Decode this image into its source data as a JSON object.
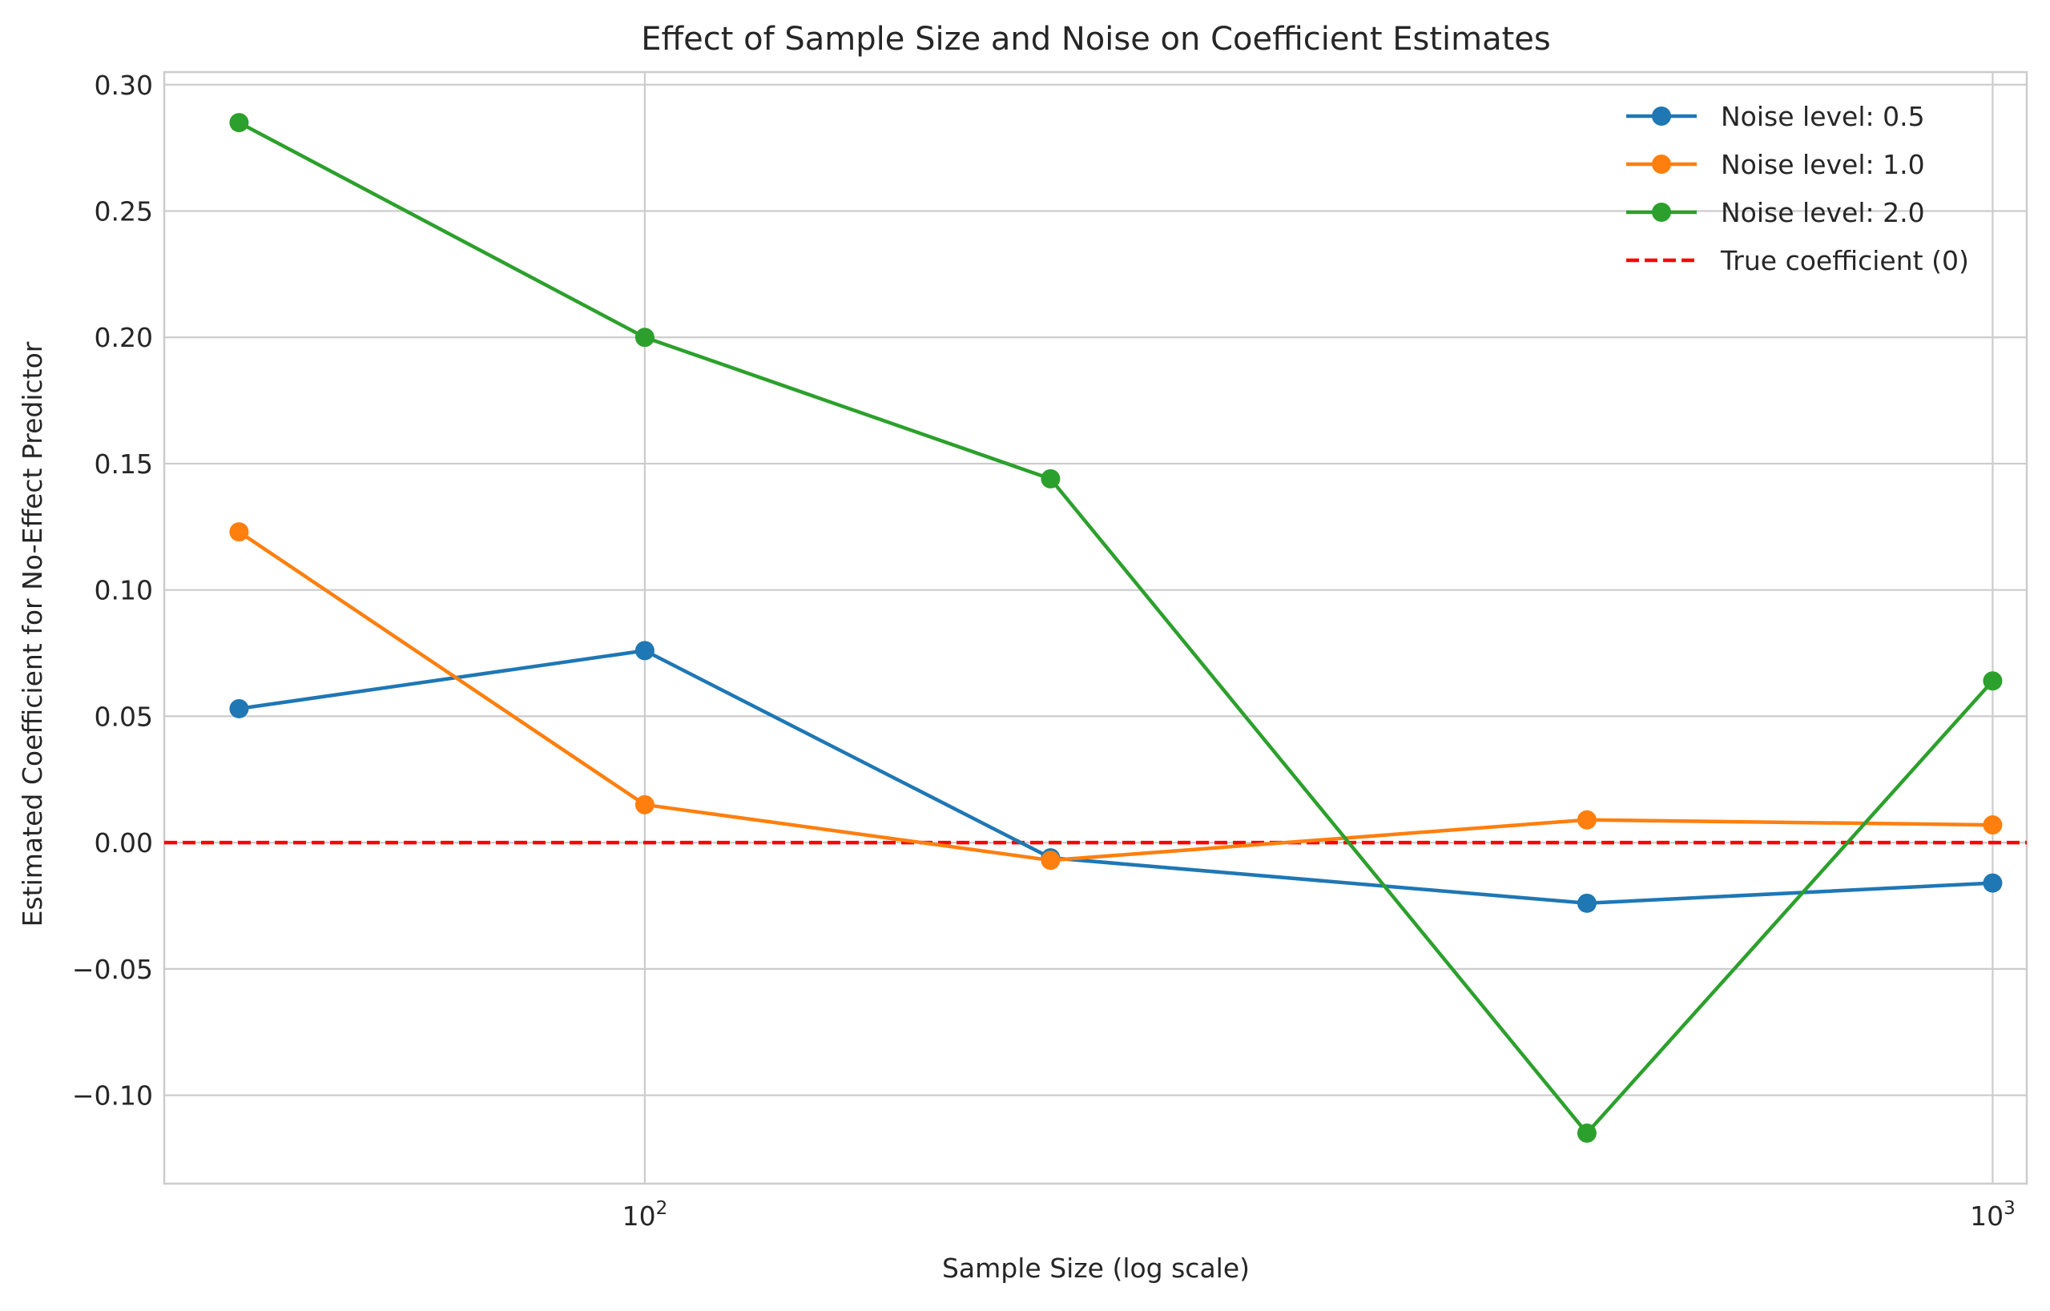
{
  "chart_data": {
    "type": "line",
    "title": "Effect of Sample Size and Noise on Coefficient Estimates",
    "xlabel": "Sample Size (log scale)",
    "ylabel": "Estimated Coefficient for No-Effect Predictor",
    "x_scale": "log",
    "x": [
      50,
      100,
      200,
      500,
      1000
    ],
    "xlim": [
      44,
      1060
    ],
    "ylim": [
      -0.135,
      0.305
    ],
    "x_ticks": [
      {
        "value": 100,
        "base": "10",
        "exp": "2"
      },
      {
        "value": 1000,
        "base": "10",
        "exp": "3"
      }
    ],
    "y_ticks": [
      {
        "value": 0.3,
        "label": "0.30"
      },
      {
        "value": 0.25,
        "label": "0.25"
      },
      {
        "value": 0.2,
        "label": "0.20"
      },
      {
        "value": 0.15,
        "label": "0.15"
      },
      {
        "value": 0.1,
        "label": "0.10"
      },
      {
        "value": 0.05,
        "label": "0.05"
      },
      {
        "value": 0.0,
        "label": "0.00"
      },
      {
        "value": -0.05,
        "label": "−0.05"
      },
      {
        "value": -0.1,
        "label": "−0.10"
      }
    ],
    "series": [
      {
        "name": "Noise level: 0.5",
        "color": "#1f77b4",
        "values": [
          0.053,
          0.076,
          -0.006,
          -0.024,
          -0.016
        ]
      },
      {
        "name": "Noise level: 1.0",
        "color": "#ff7f0e",
        "values": [
          0.123,
          0.015,
          -0.007,
          0.009,
          0.007
        ]
      },
      {
        "name": "Noise level: 2.0",
        "color": "#2ca02c",
        "values": [
          0.285,
          0.2,
          0.144,
          -0.115,
          0.064
        ]
      }
    ],
    "reference_line": {
      "name": "True coefficient (0)",
      "value": 0,
      "color": "#ff0000",
      "style": "dashed"
    },
    "grid": true,
    "legend_position": "top-right"
  }
}
